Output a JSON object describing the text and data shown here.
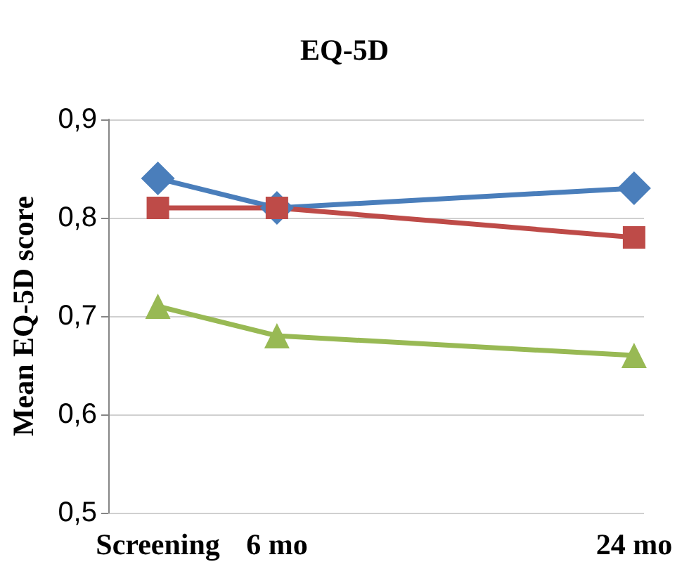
{
  "chart_data": {
    "type": "line",
    "title": "EQ-5D",
    "ylabel": "Mean EQ-5D score",
    "x": [
      0,
      6,
      24
    ],
    "series": [
      {
        "color": "#4a7ebb",
        "marker": "diamond",
        "values": [
          0.84,
          0.81,
          0.83
        ]
      },
      {
        "color": "#be4b48",
        "marker": "square",
        "values": [
          0.81,
          0.81,
          0.78
        ]
      },
      {
        "color": "#98b954",
        "marker": "triangle",
        "values": [
          0.71,
          0.68,
          0.66
        ]
      }
    ],
    "xlim": [
      -2.5,
      24.5
    ],
    "xticks": [
      {
        "value": 0,
        "label": "Screening"
      },
      {
        "value": 6,
        "label": "6 mo"
      },
      {
        "value": 24,
        "label": "24 mo"
      }
    ],
    "ylim": [
      0.5,
      0.9
    ],
    "yticks": [
      {
        "value": 0.5,
        "label": "0,5"
      },
      {
        "value": 0.6,
        "label": "0,6"
      },
      {
        "value": 0.7,
        "label": "0,7"
      },
      {
        "value": 0.8,
        "label": "0,8"
      },
      {
        "value": 0.9,
        "label": "0,9"
      }
    ],
    "grid": "y",
    "line_style": "solid"
  }
}
